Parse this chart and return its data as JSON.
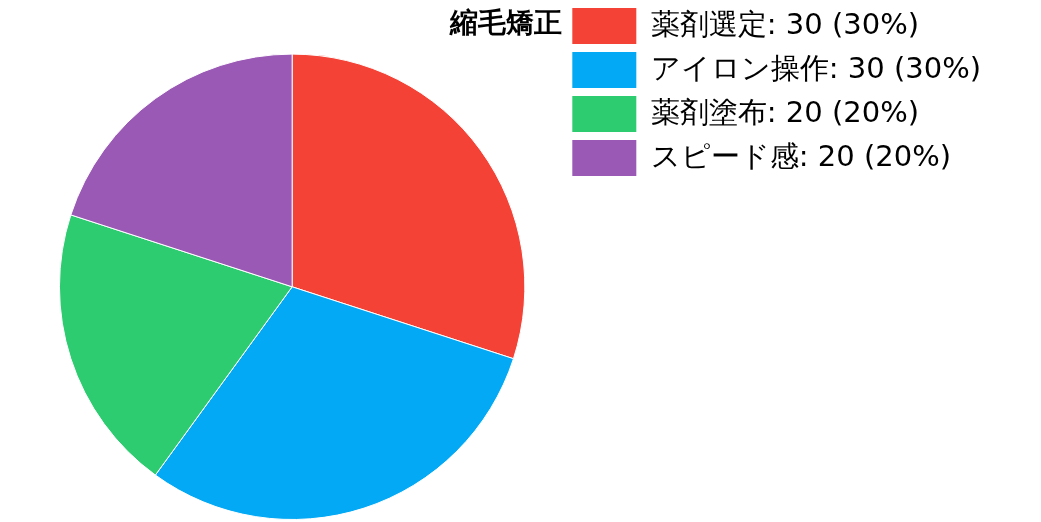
{
  "chart_data": {
    "type": "pie",
    "title": "縮毛矯正",
    "categories": [
      "薬剤選定",
      "アイロン操作",
      "薬剤塗布",
      "スピード感"
    ],
    "values": [
      30,
      30,
      20,
      20
    ],
    "value_labels": [
      "30 (30%)",
      "30 (30%)",
      "20 (20%)",
      "20 (20%)"
    ],
    "colors": [
      "#f44336",
      "#03a9f4",
      "#2ecc71",
      "#9b59b6"
    ],
    "legend": "top right"
  }
}
